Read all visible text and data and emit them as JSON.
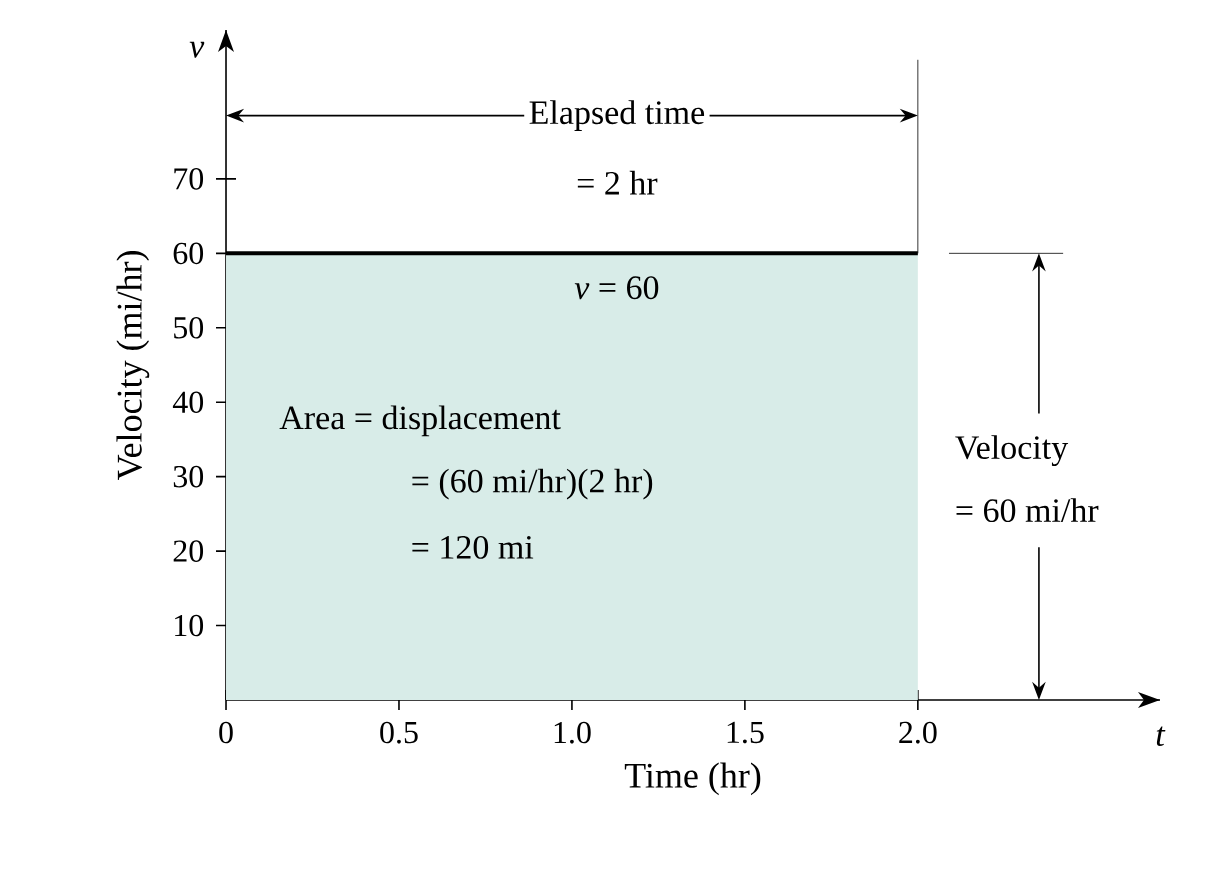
{
  "chart_data": {
    "type": "area",
    "x": [
      0,
      2
    ],
    "values": [
      60,
      60
    ],
    "color": "#d8ece8",
    "xlim": [
      0,
      2.7
    ],
    "ylim": [
      0,
      90
    ],
    "xticks": [
      0,
      0.5,
      {
        "value": 1,
        "label": "1.0"
      },
      1.5,
      {
        "value": 2,
        "label": "2.0"
      }
    ],
    "yticks": [
      10,
      20,
      30,
      40,
      50,
      60,
      70
    ],
    "xlabel": "Time (hr)",
    "ylabel": "Velocity (mi/hr)",
    "annotations": [
      "v",
      "t",
      "Elapsed time",
      "= 2 hr",
      {
        "text": "*v* = 60",
        "x": 1,
        "y": 60
      },
      "Area = displacement",
      "= (60 mi/hr)(2 hr)",
      "= 120 mi",
      "Velocity",
      "= 60 mi/hr"
    ]
  }
}
